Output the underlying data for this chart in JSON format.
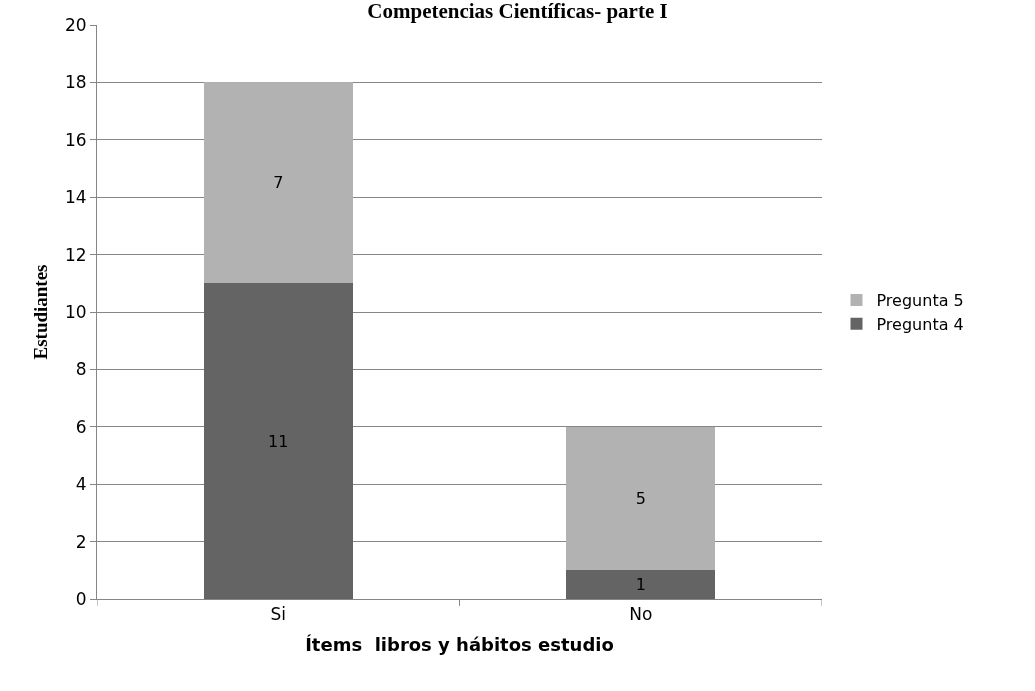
{
  "chart_data": {
    "type": "bar",
    "title": "Competencias Científicas- parte I",
    "xlabel": "Ítems  libros y hábitos estudio",
    "ylabel": "Estudiantes",
    "categories": [
      "Si",
      "No"
    ],
    "series": [
      {
        "name": "Pregunta 4",
        "color": "#646464",
        "values": [
          11,
          1
        ]
      },
      {
        "name": "Pregunta 5",
        "color": "#b2b2b2",
        "values": [
          7,
          5
        ]
      }
    ],
    "stacked": true,
    "data_labels": true,
    "ylim": [
      0,
      20
    ],
    "yticks": [
      0,
      2,
      4,
      6,
      8,
      10,
      12,
      14,
      16,
      18,
      20
    ],
    "grid": "y",
    "legend": "right"
  }
}
